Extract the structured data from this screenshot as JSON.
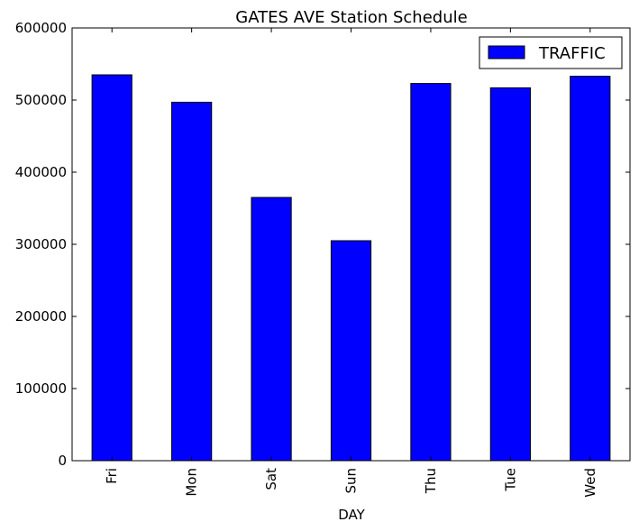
{
  "chart_data": {
    "type": "bar",
    "title": "GATES AVE Station Schedule",
    "xlabel": "DAY",
    "ylabel": "",
    "categories": [
      "Fri",
      "Mon",
      "Sat",
      "Sun",
      "Thu",
      "Tue",
      "Wed"
    ],
    "series": [
      {
        "name": "TRAFFIC",
        "values": [
          535000,
          497000,
          365000,
          305000,
          523000,
          517000,
          533000
        ]
      }
    ],
    "ylim": [
      0,
      600000
    ],
    "yticks": [
      0,
      100000,
      200000,
      300000,
      400000,
      500000,
      600000
    ],
    "ytick_labels": [
      "0",
      "100000",
      "200000",
      "300000",
      "400000",
      "500000",
      "600000"
    ],
    "legend": {
      "position": "top-right",
      "label": "TRAFFIC"
    },
    "grid": false,
    "bar_color": "#0000ff",
    "edge_color": "#000000"
  }
}
